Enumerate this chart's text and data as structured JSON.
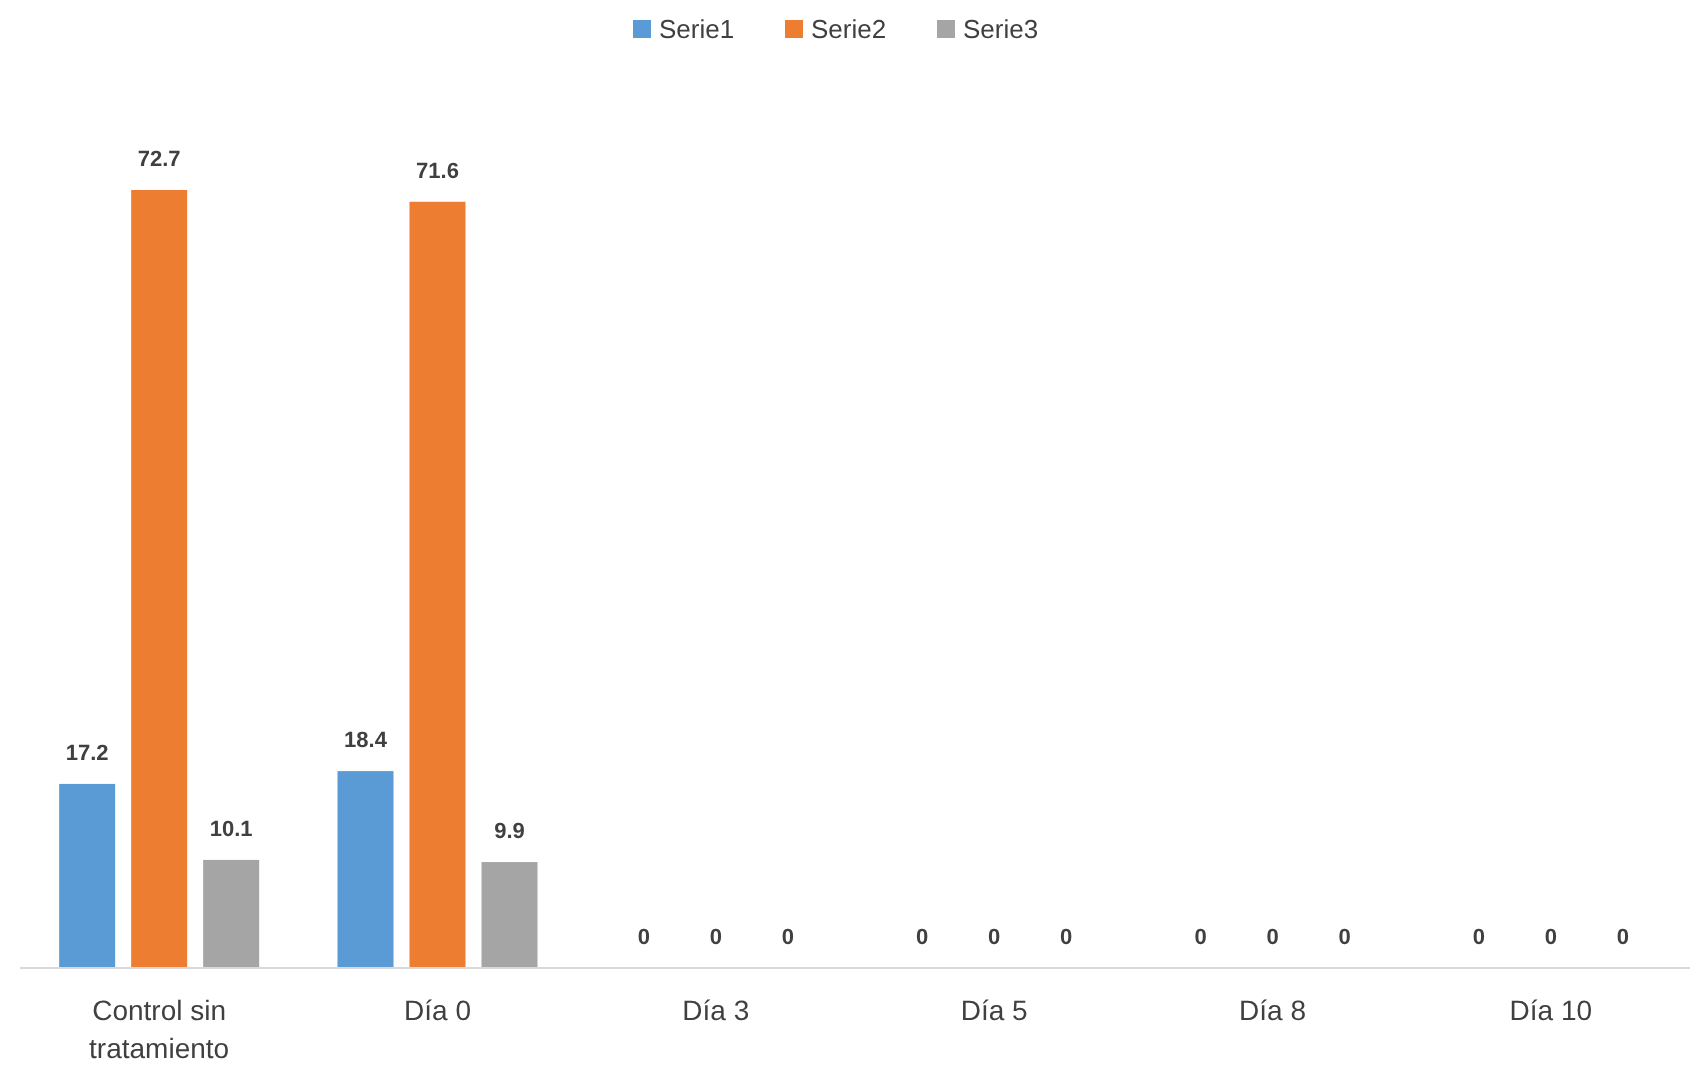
{
  "chart_data": {
    "type": "bar",
    "categories": [
      "Control sin tratamiento",
      "Día 0",
      "Día 3",
      "Día 5",
      "Día 8",
      "Día 10"
    ],
    "series": [
      {
        "name": "Serie1",
        "color": "#5b9bd5",
        "values": [
          17.2,
          18.4,
          0,
          0,
          0,
          0
        ]
      },
      {
        "name": "Serie2",
        "color": "#ed7d31",
        "values": [
          72.7,
          71.6,
          0,
          0,
          0,
          0
        ]
      },
      {
        "name": "Serie3",
        "color": "#a5a5a5",
        "values": [
          10.1,
          9.9,
          0,
          0,
          0,
          0
        ]
      }
    ],
    "data_labels": true,
    "legend": "top"
  }
}
